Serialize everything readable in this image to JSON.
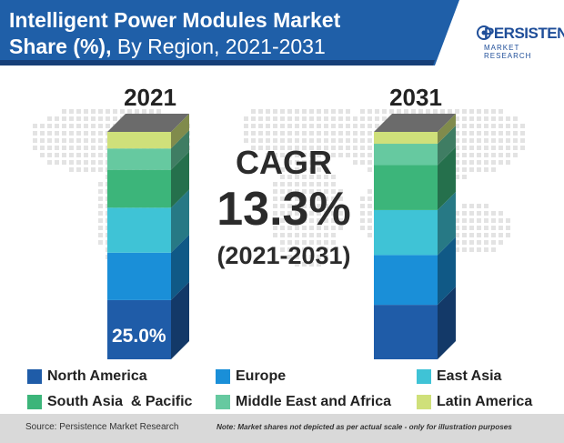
{
  "header": {
    "title_bold": "Intelligent Power Modules Market",
    "title_bold2": "Share (%),",
    "title_rest": " By Region, 2021-2031"
  },
  "logo": {
    "line1": "PERSISTENCE",
    "line2": "MARKET RESEARCH"
  },
  "cagr": {
    "label": "CAGR",
    "value": "13.3%",
    "period": "(2021-2031)"
  },
  "footer": {
    "source": "Source: Persistence Market Research",
    "note": "Note: Market shares not depicted as per actual scale - only for illustration purposes"
  },
  "colors": {
    "banner": "#1f5fa8",
    "North America": "#1f5ca8",
    "Europe": "#1a8fd8",
    "East Asia": "#3fc3d6",
    "South Asia  & Pacific": "#3cb57a",
    "Middle East and Africa": "#66c9a0",
    "Latin America": "#cfe07a"
  },
  "chart_data": {
    "type": "bar",
    "stacked": true,
    "categories": [
      "2021",
      "2031"
    ],
    "series": [
      {
        "name": "North America",
        "values": [
          25.0,
          23.0
        ]
      },
      {
        "name": "Europe",
        "values": [
          20.0,
          21.0
        ]
      },
      {
        "name": "East Asia",
        "values": [
          19.0,
          19.0
        ]
      },
      {
        "name": "South Asia  & Pacific",
        "values": [
          16.0,
          19.0
        ]
      },
      {
        "name": "Middle East and Africa",
        "values": [
          9.0,
          9.0
        ]
      },
      {
        "name": "Latin America",
        "values": [
          7.0,
          5.0
        ]
      }
    ],
    "data_labels": [
      {
        "category": "2021",
        "series": "North America",
        "text": "25.0%"
      }
    ],
    "title": "Intelligent Power Modules Market Share (%), By Region, 2021-2031",
    "legend_position": "bottom"
  }
}
